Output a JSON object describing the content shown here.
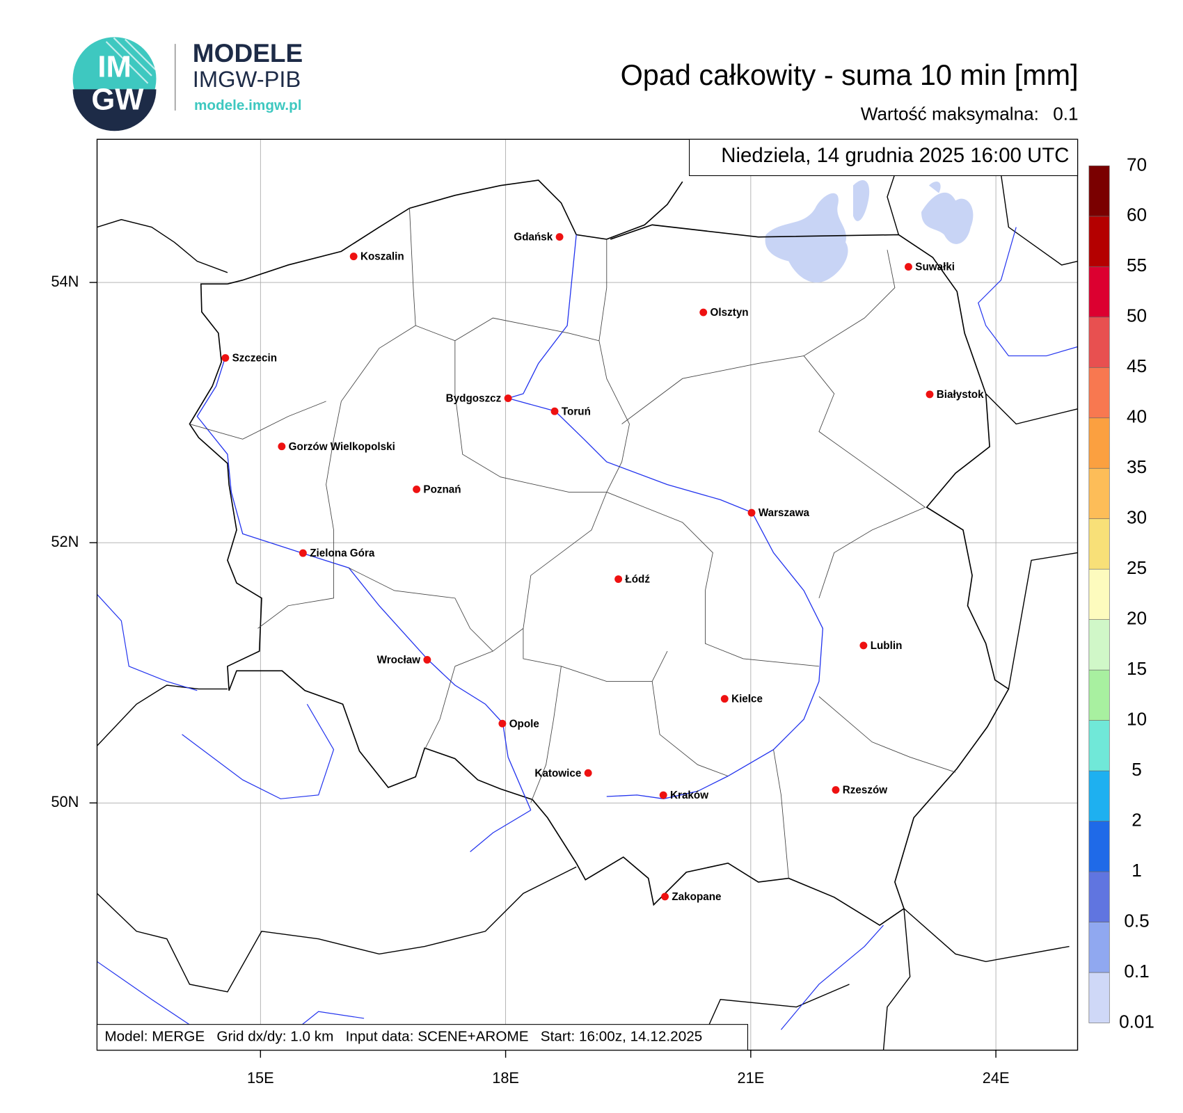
{
  "logo": {
    "mark_top": "IM",
    "mark_bottom": "GW",
    "name": "MODELE",
    "org": "IMGW-PIB",
    "url": "modele.imgw.pl"
  },
  "chart_data": {
    "type": "map",
    "title": "Opad całkowity - suma 10 min [mm]",
    "max_label": "Wartość maksymalna:",
    "max_value": 0.1,
    "date": "Niedziela, 14 grudnia 2025 16:00 UTC",
    "footer": "Model: MERGE   Grid dx/dy: 1.0 km   Input data: SCENE+AROME   Start: 16:00z, 14.12.2025",
    "xlim": [
      13,
      25
    ],
    "ylim": [
      48.1,
      55.1
    ],
    "xticks": [
      {
        "value": 15,
        "label": "15E"
      },
      {
        "value": 18,
        "label": "18E"
      },
      {
        "value": 21,
        "label": "21E"
      },
      {
        "value": 24,
        "label": "24E"
      }
    ],
    "yticks": [
      {
        "value": 50,
        "label": "50N"
      },
      {
        "value": 52,
        "label": "52N"
      },
      {
        "value": 54,
        "label": "54N"
      }
    ],
    "grid": true,
    "city_color": "#ee1111",
    "cities": [
      {
        "name": "Gdańsk",
        "lon": 18.66,
        "lat": 54.35
      },
      {
        "name": "Koszalin",
        "lon": 16.14,
        "lat": 54.2
      },
      {
        "name": "Szczecin",
        "lon": 14.57,
        "lat": 53.42
      },
      {
        "name": "Suwałki",
        "lon": 22.93,
        "lat": 54.12
      },
      {
        "name": "Olsztyn",
        "lon": 20.42,
        "lat": 53.77
      },
      {
        "name": "Bydgoszcz",
        "lon": 18.03,
        "lat": 53.11
      },
      {
        "name": "Toruń",
        "lon": 18.6,
        "lat": 53.01
      },
      {
        "name": "Białystok",
        "lon": 23.19,
        "lat": 53.14
      },
      {
        "name": "Gorzów Wielkopolski",
        "lon": 15.26,
        "lat": 52.74
      },
      {
        "name": "Poznań",
        "lon": 16.91,
        "lat": 52.41
      },
      {
        "name": "Warszawa",
        "lon": 21.01,
        "lat": 52.23
      },
      {
        "name": "Zielona Góra",
        "lon": 15.52,
        "lat": 51.92
      },
      {
        "name": "Łódź",
        "lon": 19.38,
        "lat": 51.72
      },
      {
        "name": "Lublin",
        "lon": 22.38,
        "lat": 51.21
      },
      {
        "name": "Wrocław",
        "lon": 17.04,
        "lat": 51.1
      },
      {
        "name": "Kielce",
        "lon": 20.68,
        "lat": 50.8
      },
      {
        "name": "Opole",
        "lon": 17.96,
        "lat": 50.61
      },
      {
        "name": "Katowice",
        "lon": 19.01,
        "lat": 50.23
      },
      {
        "name": "Kraków",
        "lon": 19.93,
        "lat": 50.06
      },
      {
        "name": "Rzeszów",
        "lon": 22.04,
        "lat": 50.1
      },
      {
        "name": "Zakopane",
        "lon": 19.95,
        "lat": 49.28
      }
    ],
    "colorbar": {
      "levels": [
        0.01,
        0.1,
        0.5,
        1,
        2,
        5,
        10,
        15,
        20,
        25,
        30,
        35,
        40,
        45,
        50,
        55,
        60,
        70
      ],
      "colors": [
        "#cfd8f7",
        "#90a8f0",
        "#6075e0",
        "#1f6ae8",
        "#1eb0f0",
        "#70e8d8",
        "#a8f0a0",
        "#d0f7c8",
        "#fdfbbe",
        "#f8e078",
        "#fdbd58",
        "#fba040",
        "#f87850",
        "#e85050",
        "#dc0030",
        "#b40000",
        "#7a0000"
      ]
    }
  }
}
